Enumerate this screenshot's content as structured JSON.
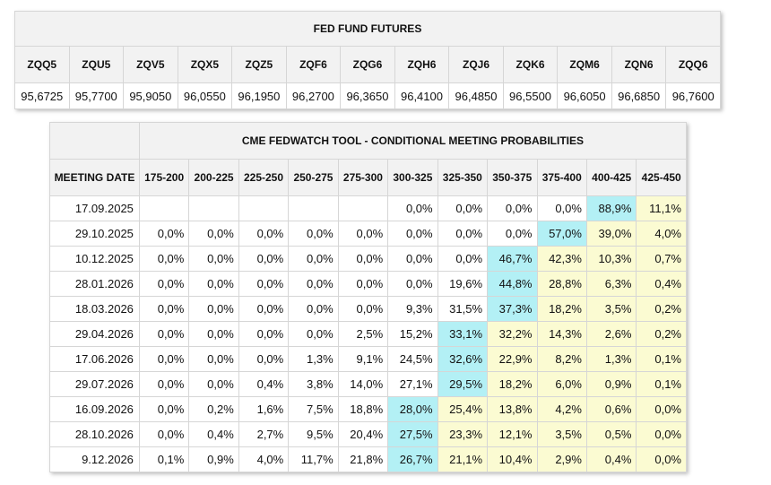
{
  "colors": {
    "highlight": "#b3f0f5",
    "above_highlight": "#fbfbd2",
    "header_bg": "#f2f2f2"
  },
  "futures": {
    "title": "FED FUND FUTURES",
    "codes": [
      "ZQQ5",
      "ZQU5",
      "ZQV5",
      "ZQX5",
      "ZQZ5",
      "ZQF6",
      "ZQG6",
      "ZQH6",
      "ZQJ6",
      "ZQK6",
      "ZQM6",
      "ZQN6",
      "ZQQ6"
    ],
    "prices": [
      "95,6725",
      "95,7700",
      "95,9050",
      "96,0550",
      "96,1950",
      "96,2700",
      "96,3650",
      "96,4100",
      "96,4850",
      "96,5500",
      "96,6050",
      "96,6850",
      "96,7600"
    ]
  },
  "fedwatch": {
    "title": "CME FEDWATCH TOOL - CONDITIONAL MEETING PROBABILITIES",
    "date_header": "MEETING DATE",
    "ranges": [
      "175-200",
      "200-225",
      "225-250",
      "250-275",
      "275-300",
      "300-325",
      "325-350",
      "350-375",
      "375-400",
      "400-425",
      "425-450"
    ],
    "rows": [
      {
        "date": "17.09.2025",
        "values": [
          "",
          "",
          "",
          "",
          "",
          "0,0%",
          "0,0%",
          "0,0%",
          "0,0%",
          "88,9%",
          "11,1%"
        ]
      },
      {
        "date": "29.10.2025",
        "values": [
          "0,0%",
          "0,0%",
          "0,0%",
          "0,0%",
          "0,0%",
          "0,0%",
          "0,0%",
          "0,0%",
          "57,0%",
          "39,0%",
          "4,0%"
        ]
      },
      {
        "date": "10.12.2025",
        "values": [
          "0,0%",
          "0,0%",
          "0,0%",
          "0,0%",
          "0,0%",
          "0,0%",
          "0,0%",
          "46,7%",
          "42,3%",
          "10,3%",
          "0,7%"
        ]
      },
      {
        "date": "28.01.2026",
        "values": [
          "0,0%",
          "0,0%",
          "0,0%",
          "0,0%",
          "0,0%",
          "0,0%",
          "19,6%",
          "44,8%",
          "28,8%",
          "6,3%",
          "0,4%"
        ]
      },
      {
        "date": "18.03.2026",
        "values": [
          "0,0%",
          "0,0%",
          "0,0%",
          "0,0%",
          "0,0%",
          "9,3%",
          "31,5%",
          "37,3%",
          "18,2%",
          "3,5%",
          "0,2%"
        ]
      },
      {
        "date": "29.04.2026",
        "values": [
          "0,0%",
          "0,0%",
          "0,0%",
          "0,0%",
          "2,5%",
          "15,2%",
          "33,1%",
          "32,2%",
          "14,3%",
          "2,6%",
          "0,2%"
        ]
      },
      {
        "date": "17.06.2026",
        "values": [
          "0,0%",
          "0,0%",
          "0,0%",
          "1,3%",
          "9,1%",
          "24,5%",
          "32,6%",
          "22,9%",
          "8,2%",
          "1,3%",
          "0,1%"
        ]
      },
      {
        "date": "29.07.2026",
        "values": [
          "0,0%",
          "0,0%",
          "0,4%",
          "3,8%",
          "14,0%",
          "27,1%",
          "29,5%",
          "18,2%",
          "6,0%",
          "0,9%",
          "0,1%"
        ]
      },
      {
        "date": "16.09.2026",
        "values": [
          "0,0%",
          "0,2%",
          "1,6%",
          "7,5%",
          "18,8%",
          "28,0%",
          "25,4%",
          "13,8%",
          "4,2%",
          "0,6%",
          "0,0%"
        ]
      },
      {
        "date": "28.10.2026",
        "values": [
          "0,0%",
          "0,4%",
          "2,7%",
          "9,5%",
          "20,4%",
          "27,5%",
          "23,3%",
          "12,1%",
          "3,5%",
          "0,5%",
          "0,0%"
        ]
      },
      {
        "date": "9.12.2026",
        "values": [
          "0,1%",
          "0,9%",
          "4,0%",
          "11,7%",
          "21,8%",
          "26,7%",
          "21,1%",
          "10,4%",
          "2,9%",
          "0,4%",
          "0,0%"
        ]
      }
    ]
  }
}
